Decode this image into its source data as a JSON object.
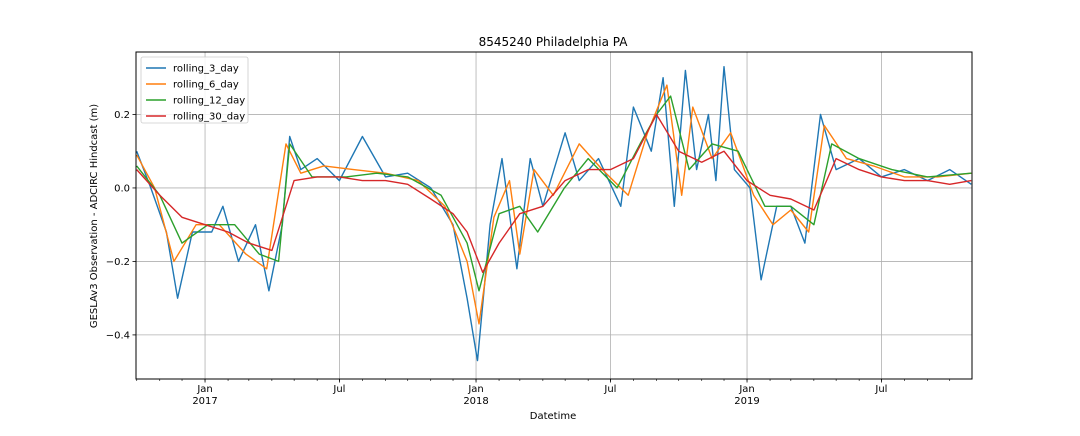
{
  "chart_data": {
    "type": "line",
    "title": "8545240 Philadelphia PA",
    "xlabel": "Datetime",
    "ylabel": "GESLAv3 Observation - ADCIRC Hindcast (m)",
    "xlim": [
      "2016-09-30",
      "2019-10-31"
    ],
    "ylim": [
      -0.52,
      0.37
    ],
    "grid": true,
    "legend_position": "upper-left",
    "y_ticks": [
      {
        "value": -0.4,
        "label": "−0.4"
      },
      {
        "value": -0.2,
        "label": "−0.2"
      },
      {
        "value": 0.0,
        "label": "0.0"
      },
      {
        "value": 0.2,
        "label": "0.2"
      }
    ],
    "x_major_ticks": [
      {
        "date": "2017-01-01",
        "month": "Jan",
        "year": "2017"
      },
      {
        "date": "2017-07-01",
        "month": "Jul",
        "year": ""
      },
      {
        "date": "2018-01-01",
        "month": "Jan",
        "year": "2018"
      },
      {
        "date": "2018-07-01",
        "month": "Jul",
        "year": ""
      },
      {
        "date": "2019-01-01",
        "month": "Jan",
        "year": "2019"
      },
      {
        "date": "2019-07-01",
        "month": "Jul",
        "year": ""
      }
    ],
    "series": [
      {
        "name": "rolling_3_day",
        "color": "#1f77b4",
        "x": [
          "2016-10-01",
          "2016-10-20",
          "2016-11-10",
          "2016-11-25",
          "2016-12-15",
          "2017-01-10",
          "2017-01-25",
          "2017-02-15",
          "2017-03-10",
          "2017-03-28",
          "2017-04-15",
          "2017-04-25",
          "2017-05-10",
          "2017-06-01",
          "2017-07-01",
          "2017-08-01",
          "2017-09-01",
          "2017-10-01",
          "2017-11-01",
          "2017-12-01",
          "2017-12-20",
          "2018-01-03",
          "2018-01-20",
          "2018-02-05",
          "2018-02-25",
          "2018-03-15",
          "2018-04-01",
          "2018-05-01",
          "2018-05-20",
          "2018-06-15",
          "2018-07-15",
          "2018-08-01",
          "2018-08-25",
          "2018-09-10",
          "2018-09-25",
          "2018-10-10",
          "2018-10-25",
          "2018-11-10",
          "2018-11-20",
          "2018-12-01",
          "2018-12-15",
          "2019-01-05",
          "2019-01-20",
          "2019-02-10",
          "2019-03-01",
          "2019-03-20",
          "2019-04-10",
          "2019-05-01",
          "2019-06-01",
          "2019-07-01",
          "2019-08-01",
          "2019-09-01",
          "2019-10-01",
          "2019-10-30"
        ],
        "y": [
          0.1,
          0.0,
          -0.12,
          -0.3,
          -0.12,
          -0.12,
          -0.05,
          -0.2,
          -0.1,
          -0.28,
          -0.1,
          0.14,
          0.05,
          0.08,
          0.02,
          0.14,
          0.03,
          0.04,
          0.0,
          -0.1,
          -0.3,
          -0.47,
          -0.1,
          0.08,
          -0.22,
          0.08,
          -0.05,
          0.15,
          0.02,
          0.08,
          -0.05,
          0.22,
          0.1,
          0.3,
          -0.05,
          0.32,
          0.05,
          0.2,
          0.02,
          0.33,
          0.05,
          0.0,
          -0.25,
          -0.05,
          -0.05,
          -0.15,
          0.2,
          0.05,
          0.08,
          0.03,
          0.05,
          0.02,
          0.05,
          0.01
        ]
      },
      {
        "name": "rolling_6_day",
        "color": "#ff7f0e",
        "x": [
          "2016-10-01",
          "2016-10-25",
          "2016-11-20",
          "2016-12-20",
          "2017-01-20",
          "2017-02-25",
          "2017-03-25",
          "2017-04-20",
          "2017-05-10",
          "2017-06-10",
          "2017-07-20",
          "2017-09-01",
          "2017-10-15",
          "2017-11-20",
          "2017-12-20",
          "2018-01-05",
          "2018-01-25",
          "2018-02-15",
          "2018-03-01",
          "2018-03-20",
          "2018-04-15",
          "2018-05-20",
          "2018-06-20",
          "2018-07-25",
          "2018-08-20",
          "2018-09-15",
          "2018-10-05",
          "2018-10-20",
          "2018-11-15",
          "2018-12-10",
          "2019-01-10",
          "2019-02-05",
          "2019-03-01",
          "2019-03-25",
          "2019-04-15",
          "2019-05-15",
          "2019-06-20",
          "2019-08-01",
          "2019-09-15",
          "2019-10-30"
        ],
        "y": [
          0.09,
          0.0,
          -0.2,
          -0.1,
          -0.1,
          -0.18,
          -0.22,
          0.12,
          0.04,
          0.06,
          0.05,
          0.04,
          0.02,
          -0.05,
          -0.2,
          -0.37,
          -0.08,
          0.02,
          -0.18,
          0.05,
          -0.02,
          0.12,
          0.05,
          -0.02,
          0.15,
          0.28,
          -0.02,
          0.22,
          0.08,
          0.15,
          -0.02,
          -0.1,
          -0.06,
          -0.12,
          0.17,
          0.08,
          0.06,
          0.03,
          0.03,
          0.04
        ]
      },
      {
        "name": "rolling_12_day",
        "color": "#2ca02c",
        "x": [
          "2016-10-01",
          "2016-11-01",
          "2016-12-01",
          "2017-01-05",
          "2017-02-10",
          "2017-03-15",
          "2017-04-10",
          "2017-04-25",
          "2017-05-25",
          "2017-07-10",
          "2017-08-20",
          "2017-10-01",
          "2017-11-15",
          "2017-12-20",
          "2018-01-05",
          "2018-02-01",
          "2018-03-01",
          "2018-03-25",
          "2018-04-30",
          "2018-06-01",
          "2018-07-10",
          "2018-08-10",
          "2018-09-01",
          "2018-09-20",
          "2018-10-15",
          "2018-11-15",
          "2018-12-20",
          "2019-01-25",
          "2019-03-01",
          "2019-04-01",
          "2019-04-25",
          "2019-06-01",
          "2019-07-15",
          "2019-09-01",
          "2019-10-30"
        ],
        "y": [
          0.06,
          -0.02,
          -0.15,
          -0.1,
          -0.1,
          -0.18,
          -0.2,
          0.12,
          0.03,
          0.03,
          0.04,
          0.03,
          -0.02,
          -0.15,
          -0.28,
          -0.07,
          -0.05,
          -0.12,
          0.0,
          0.08,
          0.0,
          0.12,
          0.2,
          0.25,
          0.05,
          0.12,
          0.1,
          -0.05,
          -0.05,
          -0.1,
          0.12,
          0.08,
          0.05,
          0.03,
          0.04
        ]
      },
      {
        "name": "rolling_30_day",
        "color": "#d62728",
        "x": [
          "2016-10-01",
          "2016-11-01",
          "2016-12-01",
          "2017-01-01",
          "2017-02-01",
          "2017-03-01",
          "2017-04-01",
          "2017-05-01",
          "2017-06-01",
          "2017-07-01",
          "2017-08-01",
          "2017-09-01",
          "2017-10-01",
          "2017-11-01",
          "2017-12-01",
          "2017-12-20",
          "2018-01-10",
          "2018-02-01",
          "2018-03-01",
          "2018-04-01",
          "2018-05-01",
          "2018-06-01",
          "2018-07-01",
          "2018-08-01",
          "2018-09-01",
          "2018-10-01",
          "2018-11-01",
          "2018-12-01",
          "2019-01-01",
          "2019-02-01",
          "2019-03-01",
          "2019-04-01",
          "2019-05-01",
          "2019-06-01",
          "2019-07-01",
          "2019-08-01",
          "2019-09-01",
          "2019-10-01",
          "2019-10-30"
        ],
        "y": [
          0.05,
          -0.02,
          -0.08,
          -0.1,
          -0.12,
          -0.15,
          -0.17,
          0.02,
          0.03,
          0.03,
          0.02,
          0.02,
          0.01,
          -0.03,
          -0.07,
          -0.12,
          -0.23,
          -0.15,
          -0.07,
          -0.05,
          0.02,
          0.05,
          0.05,
          0.08,
          0.2,
          0.1,
          0.07,
          0.1,
          0.02,
          -0.02,
          -0.03,
          -0.06,
          0.08,
          0.05,
          0.03,
          0.02,
          0.02,
          0.01,
          0.02
        ]
      }
    ]
  }
}
